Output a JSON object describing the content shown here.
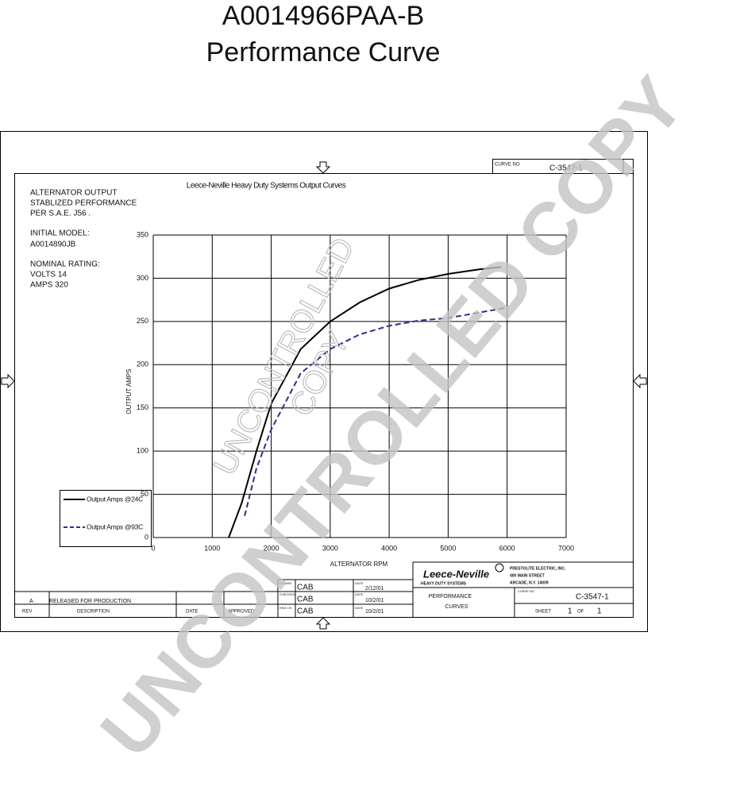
{
  "header": {
    "part_number": "A0014966PAA-B",
    "title": "Performance Curve"
  },
  "notes": [
    "ALTERNATOR OUTPUT",
    "STABLIZED PERFORMANCE",
    "PER S.A.E. J56 .",
    "INITIAL MODEL:",
    "A0014890JB",
    "NOMINAL RATING:",
    "VOLTS 14",
    "AMPS 320"
  ],
  "watermark": {
    "large": "UNCONTROLLED COPY",
    "stamp_line1": "UNCONTROLLED",
    "stamp_line2": "COPY"
  },
  "title_block": {
    "curve_no_label": "CURVE NO",
    "curve_no": "C-3547-1",
    "revision": {
      "rev": "A",
      "description": "RELEASED FOR PRODUCTION",
      "headers": [
        "REV",
        "DESCRIPTION",
        "DATE",
        "APPROVED"
      ]
    },
    "approvals": [
      {
        "role": "DRAWN",
        "name": "CAB",
        "date_label": "DATE",
        "date": "2/12/01"
      },
      {
        "role": "CHECKED",
        "name": "CAB",
        "date_label": "DATE",
        "date": "10/2/01"
      },
      {
        "role": "ENG CK",
        "name": "CAB",
        "date_label": "DATE",
        "date": "10/2/01"
      }
    ],
    "logo": "Leece-Neville",
    "logo_sub": "HEAVY DUTY SYSTEMS",
    "company": [
      "PRESTOLITE ELECTRIC, INC.",
      "400 MAIN STREET",
      "ARCADE, N.Y. 14009"
    ],
    "drawing_title": [
      "PERFORMANCE",
      "CURVES"
    ],
    "sheet_label": "SHEET",
    "sheet": "1",
    "of_label": "OF",
    "sheet_total": "1"
  },
  "chart_data": {
    "type": "line",
    "title": "Leece-Neville Heavy Duty Systems Output Curves",
    "x_label": "ALTERNATOR RPM",
    "y_label": "OUTPUT AMPS",
    "xlim": [
      0,
      7000
    ],
    "xticks": [
      0,
      1000,
      2000,
      3000,
      4000,
      5000,
      6000,
      7000
    ],
    "ylim": [
      0,
      350
    ],
    "yticks": [
      0,
      50,
      100,
      150,
      200,
      250,
      300,
      350
    ],
    "grid": true,
    "series": [
      {
        "name": "Output Amps @24C",
        "color": "#000000",
        "dash": false,
        "x": [
          1280,
          1500,
          1750,
          2000,
          2500,
          3000,
          3500,
          4000,
          4500,
          5000,
          5500,
          5900
        ],
        "values": [
          0,
          40,
          100,
          155,
          218,
          250,
          272,
          288,
          298,
          305,
          310,
          313
        ]
      },
      {
        "name": "Output Amps @93C",
        "color": "#2e2e8a",
        "dash": true,
        "x": [
          1550,
          1750,
          2000,
          2500,
          3000,
          3500,
          4000,
          4500,
          5000,
          5500,
          6000
        ],
        "values": [
          25,
          80,
          125,
          190,
          218,
          235,
          245,
          251,
          254,
          260,
          266
        ]
      }
    ]
  }
}
